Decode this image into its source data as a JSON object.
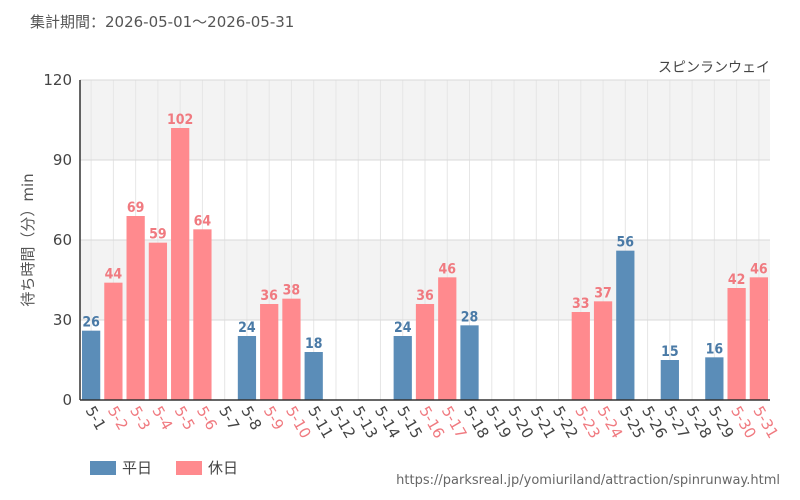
{
  "header": {
    "period_label": "集計期間：2026-05-01〜2026-05-31"
  },
  "legend": [
    {
      "name": "平日",
      "color": "#5b8db8"
    },
    {
      "name": "休日",
      "color": "#ff8a8e"
    }
  ],
  "source": "https://parksreal.jp/yomiuriland/attraction/spinrunway.html",
  "chart_data": {
    "type": "bar",
    "title": "スピンランウェイ",
    "ylabel": "待ち時間（分）min",
    "xlabel": "",
    "ylim": [
      0,
      120
    ],
    "yticks": [
      0,
      30,
      60,
      90,
      120
    ],
    "grid": true,
    "legend_position": "bottom-left",
    "colors": {
      "weekday": "#5b8db8",
      "holiday": "#ff8a8e",
      "weekday_label": "#4a7aa6",
      "holiday_label": "#f07a80"
    },
    "categories": [
      "5-1",
      "5-2",
      "5-3",
      "5-4",
      "5-5",
      "5-6",
      "5-7",
      "5-8",
      "5-9",
      "5-10",
      "5-11",
      "5-12",
      "5-13",
      "5-14",
      "5-15",
      "5-16",
      "5-17",
      "5-18",
      "5-19",
      "5-20",
      "5-21",
      "5-22",
      "5-23",
      "5-24",
      "5-25",
      "5-26",
      "5-27",
      "5-28",
      "5-29",
      "5-30",
      "5-31"
    ],
    "values": [
      26,
      44,
      69,
      59,
      102,
      64,
      null,
      24,
      36,
      38,
      18,
      null,
      null,
      null,
      24,
      36,
      46,
      28,
      null,
      null,
      null,
      null,
      33,
      37,
      56,
      null,
      15,
      null,
      16,
      42,
      46
    ],
    "day_type": [
      "weekday",
      "holiday",
      "holiday",
      "holiday",
      "holiday",
      "holiday",
      "weekday",
      "weekday",
      "holiday",
      "holiday",
      "weekday",
      "weekday",
      "weekday",
      "weekday",
      "weekday",
      "holiday",
      "holiday",
      "weekday",
      "weekday",
      "weekday",
      "weekday",
      "weekday",
      "holiday",
      "holiday",
      "weekday",
      "weekday",
      "weekday",
      "weekday",
      "weekday",
      "holiday",
      "holiday"
    ]
  }
}
